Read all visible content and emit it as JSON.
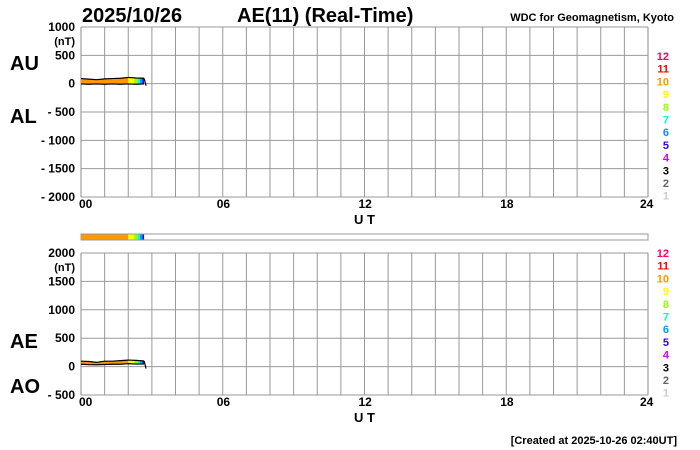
{
  "header": {
    "date": "2025/10/26",
    "title": "AE(11) (Real-Time)",
    "source": "WDC for Geomagnetism, Kyoto"
  },
  "footer": {
    "created": "[Created at 2025-10-26 02:40UT]"
  },
  "station_legend": {
    "labels": [
      "12",
      "11",
      "10",
      "9",
      "8",
      "7",
      "6",
      "5",
      "4",
      "3",
      "2",
      "1"
    ],
    "colors": [
      "#ff0066",
      "#ff0000",
      "#ff9900",
      "#ffff00",
      "#99ff00",
      "#00ffcc",
      "#0099ff",
      "#3300ff",
      "#cc00ff",
      "#000000",
      "#666666",
      "#cccccc"
    ]
  },
  "coverage_bar": {
    "segments": [
      {
        "start": 0,
        "end": 2.0,
        "stations": 10
      },
      {
        "start": 2.0,
        "end": 2.25,
        "stations": 9
      },
      {
        "start": 2.25,
        "end": 2.4,
        "stations": 8
      },
      {
        "start": 2.4,
        "end": 2.5,
        "stations": 7
      },
      {
        "start": 2.5,
        "end": 2.6,
        "stations": 6
      },
      {
        "start": 2.6,
        "end": 2.67,
        "stations": 5
      }
    ]
  },
  "chart_data": [
    {
      "type": "area",
      "panel": "AU/AL",
      "ylabel_top": "AU",
      "ylabel_bottom": "AL",
      "unit": "(nT)",
      "xlabel": "U T",
      "xlim": [
        0,
        24
      ],
      "ylim": [
        -2000,
        1000
      ],
      "xticks": [
        "00",
        "06",
        "12",
        "18",
        "24"
      ],
      "yticks": [
        "1000",
        "500",
        "0",
        "- 500",
        "- 1000",
        "- 1500",
        "- 2000"
      ],
      "grid": true,
      "x": [
        0,
        0.33,
        0.67,
        1.0,
        1.33,
        1.67,
        2.0,
        2.33,
        2.67
      ],
      "series": [
        {
          "name": "AU",
          "values": [
            90,
            80,
            70,
            85,
            90,
            95,
            110,
            100,
            95
          ]
        },
        {
          "name": "AL",
          "values": [
            -5,
            -10,
            -5,
            -10,
            -5,
            -10,
            -5,
            -10,
            -5
          ]
        }
      ]
    },
    {
      "type": "area",
      "panel": "AE/AO",
      "ylabel_top": "AE",
      "ylabel_bottom": "AO",
      "unit": "(nT)",
      "xlabel": "U T",
      "xlim": [
        0,
        24
      ],
      "ylim": [
        -500,
        2000
      ],
      "xticks": [
        "00",
        "06",
        "12",
        "18",
        "24"
      ],
      "yticks": [
        "2000",
        "1500",
        "1000",
        "500",
        "0",
        "- 500"
      ],
      "grid": true,
      "x": [
        0,
        0.33,
        0.67,
        1.0,
        1.33,
        1.67,
        2.0,
        2.33,
        2.67
      ],
      "series": [
        {
          "name": "AE",
          "values": [
            95,
            90,
            75,
            95,
            95,
            105,
            115,
            110,
            100
          ]
        },
        {
          "name": "AO",
          "values": [
            42,
            35,
            32,
            37,
            42,
            42,
            52,
            45,
            45
          ]
        }
      ]
    }
  ]
}
